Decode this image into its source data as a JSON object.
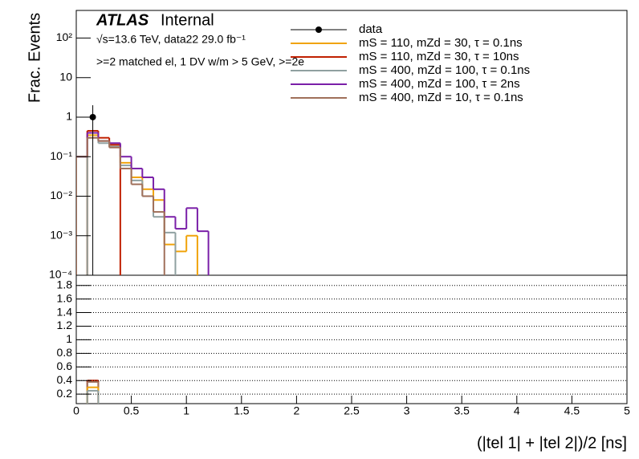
{
  "chart_data": [
    {
      "type": "histogram",
      "log_y": true,
      "ylabel": "Frac. Events",
      "annotations": [
        "ATLAS",
        "Internal",
        "√s=13.6 TeV, data22 29.0 fb⁻¹",
        ">=2 matched el, 1 DV w/m > 5 GeV, >=2e"
      ],
      "xlim": [
        0,
        5
      ],
      "ylim": [
        0.0001,
        500
      ],
      "yticks": [
        {
          "value": 0.0001,
          "label": "10⁻⁴"
        },
        {
          "value": 0.001,
          "label": "10⁻³"
        },
        {
          "value": 0.01,
          "label": "10⁻²"
        },
        {
          "value": 0.1,
          "label": "10⁻¹"
        },
        1,
        10,
        {
          "value": 100,
          "label": "10²"
        }
      ],
      "bins": [
        0,
        0.1,
        0.2,
        0.3,
        0.4,
        0.5,
        0.6,
        0.7,
        0.8,
        0.9,
        1.0,
        1.1,
        1.2
      ],
      "data": {
        "name": "data",
        "color": "#000000",
        "x": [
          0.15
        ],
        "values": [
          1
        ],
        "errors": [
          1
        ]
      },
      "series": [
        {
          "name": "mS = 110, mZd = 30, τ = 0.1ns",
          "color": "#f0a30a",
          "values": [
            null,
            0.35,
            0.25,
            0.2,
            0.07,
            0.03,
            0.015,
            0.008,
            0.0006,
            0.0004,
            0.001,
            null
          ]
        },
        {
          "name": "mS = 110, mZd = 30, τ = 10ns",
          "color": "#c02000",
          "values": [
            null,
            0.45,
            0.3,
            0.2,
            null,
            null,
            null,
            null,
            null,
            null,
            null,
            null
          ]
        },
        {
          "name": "mS = 400, mZd = 100, τ = 0.1ns",
          "color": "#8fa0a0",
          "values": [
            null,
            0.3,
            0.22,
            0.18,
            0.06,
            0.025,
            0.01,
            0.003,
            0.0012,
            null,
            null,
            null
          ]
        },
        {
          "name": "mS = 400, mZd = 100, τ = 2ns",
          "color": "#7a1fa8",
          "values": [
            0.1,
            0.4,
            0.25,
            0.22,
            0.1,
            0.05,
            0.03,
            0.015,
            0.003,
            0.0015,
            0.005,
            0.0013
          ]
        },
        {
          "name": "mS = 400, mZd = 10, τ = 0.1ns",
          "color": "#a0705a",
          "values": [
            0.1,
            0.3,
            0.25,
            0.17,
            0.05,
            0.02,
            0.01,
            0.004,
            null,
            null,
            null,
            null
          ]
        }
      ]
    },
    {
      "type": "histogram",
      "log_y": false,
      "grid": true,
      "xlabel": "(|tel 1| + |tel 2|)/2 [ns]",
      "xlim": [
        0,
        5
      ],
      "ylim": [
        0.06,
        1.95
      ],
      "xticks": [
        0,
        0.5,
        1,
        1.5,
        2,
        2.5,
        3,
        3.5,
        4,
        4.5,
        5
      ],
      "yticks": [
        0.2,
        0.4,
        0.6,
        0.8,
        1,
        1.2,
        1.4,
        1.6,
        1.8
      ],
      "bins": [
        0.1,
        0.2
      ],
      "series": [
        {
          "color": "#c02000",
          "values": [
            0.4
          ]
        },
        {
          "color": "#a0705a",
          "values": [
            0.38
          ]
        },
        {
          "color": "#f0a30a",
          "values": [
            0.3
          ]
        },
        {
          "color": "#8fa0a0",
          "values": [
            0.25
          ]
        }
      ]
    }
  ]
}
